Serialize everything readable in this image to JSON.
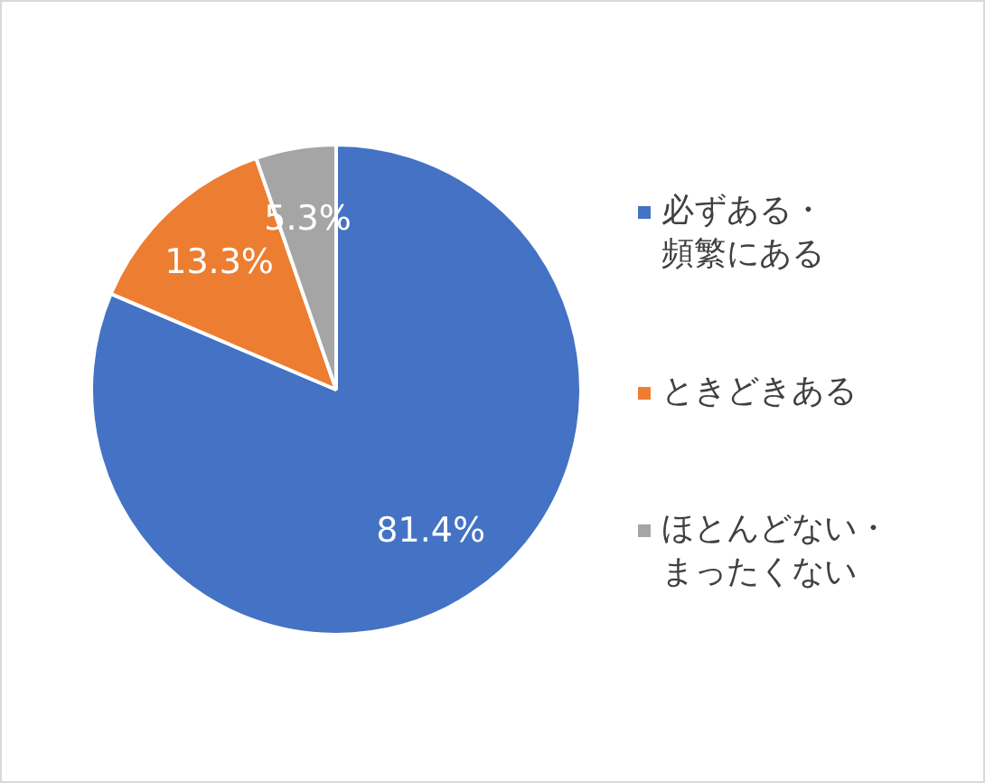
{
  "chart_data": {
    "type": "pie",
    "categories": [
      "必ずある・頻繁にある",
      "ときどきある",
      "ほとんどない・まったくない"
    ],
    "values": [
      81.4,
      13.3,
      5.3
    ],
    "colors": [
      "#4472c4",
      "#ed7d31",
      "#a5a5a5"
    ],
    "value_labels": [
      "81.4%",
      "13.3%",
      "5.3%"
    ],
    "legend": "right"
  }
}
